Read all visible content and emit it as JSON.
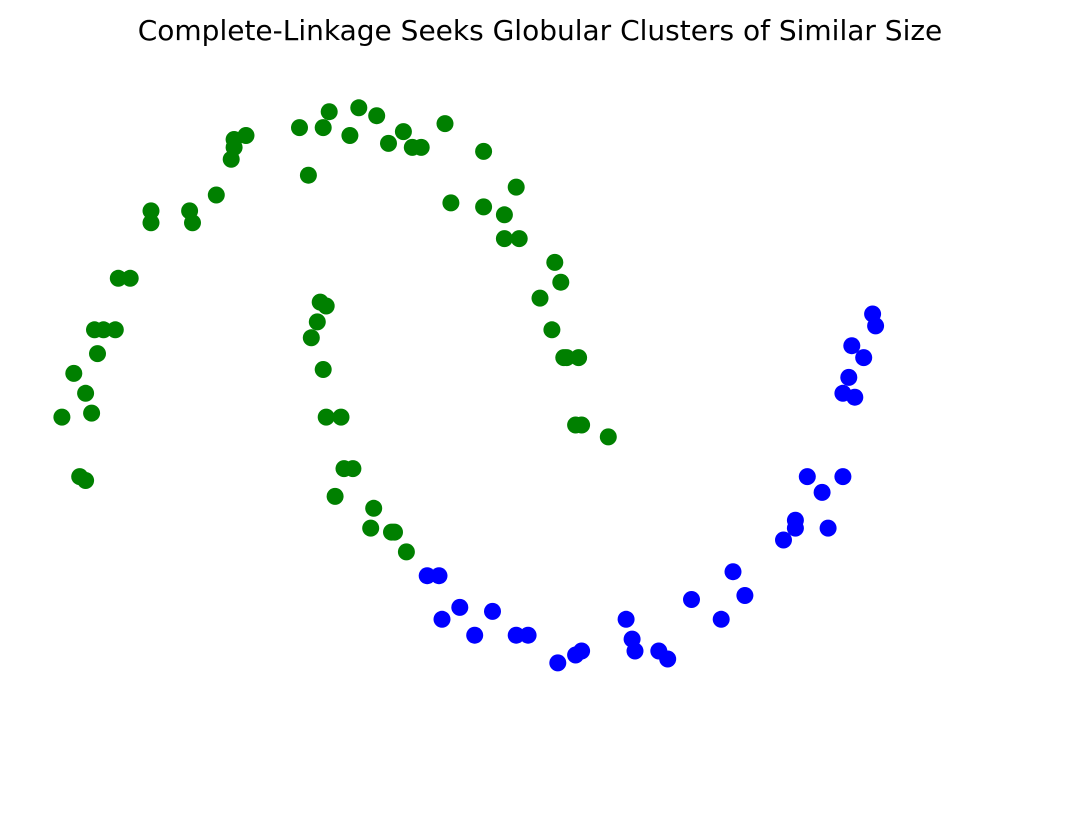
{
  "chart_data": {
    "type": "scatter",
    "title": "Complete-Linkage Seeks Globular Clusters of Similar Size",
    "xlabel": "",
    "ylabel": "",
    "axes_visible": false,
    "grid": false,
    "xlim": [
      -1.15,
      2.15
    ],
    "ylim": [
      -0.62,
      1.12
    ],
    "series": [
      {
        "color": "#008000",
        "points": [
          [
            -1.11,
            0.27
          ],
          [
            -1.07,
            0.38
          ],
          [
            -1.03,
            0.33
          ],
          [
            -1.01,
            0.28
          ],
          [
            -1.05,
            0.12
          ],
          [
            -1.03,
            0.11
          ],
          [
            -0.99,
            0.43
          ],
          [
            -1.0,
            0.49
          ],
          [
            -0.97,
            0.49
          ],
          [
            -0.93,
            0.49
          ],
          [
            -0.92,
            0.62
          ],
          [
            -0.88,
            0.62
          ],
          [
            -0.81,
            0.76
          ],
          [
            -0.81,
            0.79
          ],
          [
            -0.68,
            0.79
          ],
          [
            -0.67,
            0.76
          ],
          [
            -0.59,
            0.83
          ],
          [
            -0.54,
            0.92
          ],
          [
            -0.53,
            0.95
          ],
          [
            -0.53,
            0.97
          ],
          [
            -0.49,
            0.98
          ],
          [
            -0.31,
            1.0
          ],
          [
            -0.28,
            0.88
          ],
          [
            -0.23,
            1.0
          ],
          [
            -0.21,
            1.04
          ],
          [
            -0.14,
            0.98
          ],
          [
            -0.11,
            1.05
          ],
          [
            -0.05,
            1.03
          ],
          [
            -0.01,
            0.96
          ],
          [
            0.04,
            0.99
          ],
          [
            0.07,
            0.95
          ],
          [
            0.1,
            0.95
          ],
          [
            0.18,
            1.01
          ],
          [
            0.2,
            0.81
          ],
          [
            0.31,
            0.94
          ],
          [
            0.31,
            0.8
          ],
          [
            0.38,
            0.78
          ],
          [
            0.42,
            0.85
          ],
          [
            0.38,
            0.72
          ],
          [
            0.43,
            0.72
          ],
          [
            0.55,
            0.66
          ],
          [
            0.57,
            0.61
          ],
          [
            0.5,
            0.57
          ],
          [
            0.54,
            0.49
          ],
          [
            0.58,
            0.42
          ],
          [
            0.59,
            0.42
          ],
          [
            0.63,
            0.42
          ],
          [
            0.62,
            0.25
          ],
          [
            0.64,
            0.25
          ],
          [
            0.73,
            0.22
          ],
          [
            -0.24,
            0.56
          ],
          [
            -0.22,
            0.55
          ],
          [
            -0.25,
            0.51
          ],
          [
            -0.27,
            0.47
          ],
          [
            -0.23,
            0.39
          ],
          [
            -0.22,
            0.27
          ],
          [
            -0.17,
            0.27
          ],
          [
            -0.16,
            0.14
          ],
          [
            -0.13,
            0.14
          ],
          [
            -0.19,
            0.07
          ],
          [
            -0.06,
            0.04
          ],
          [
            -0.07,
            -0.01
          ],
          [
            0.0,
            -0.02
          ],
          [
            0.01,
            -0.02
          ],
          [
            0.05,
            -0.07
          ]
        ]
      },
      {
        "color": "#0000ff",
        "points": [
          [
            0.12,
            -0.13
          ],
          [
            0.16,
            -0.13
          ],
          [
            0.17,
            -0.24
          ],
          [
            0.23,
            -0.21
          ],
          [
            0.28,
            -0.28
          ],
          [
            0.34,
            -0.22
          ],
          [
            0.42,
            -0.28
          ],
          [
            0.46,
            -0.28
          ],
          [
            0.56,
            -0.35
          ],
          [
            0.62,
            -0.33
          ],
          [
            0.64,
            -0.32
          ],
          [
            0.79,
            -0.24
          ],
          [
            0.81,
            -0.29
          ],
          [
            0.82,
            -0.32
          ],
          [
            0.9,
            -0.32
          ],
          [
            0.93,
            -0.34
          ],
          [
            1.01,
            -0.19
          ],
          [
            1.11,
            -0.24
          ],
          [
            1.15,
            -0.12
          ],
          [
            1.19,
            -0.18
          ],
          [
            1.32,
            -0.04
          ],
          [
            1.36,
            0.01
          ],
          [
            1.36,
            -0.01
          ],
          [
            1.4,
            0.12
          ],
          [
            1.45,
            0.08
          ],
          [
            1.47,
            -0.01
          ],
          [
            1.52,
            0.12
          ],
          [
            1.52,
            0.33
          ],
          [
            1.54,
            0.37
          ],
          [
            1.56,
            0.32
          ],
          [
            1.55,
            0.45
          ],
          [
            1.59,
            0.42
          ],
          [
            1.62,
            0.53
          ],
          [
            1.63,
            0.5
          ]
        ]
      }
    ]
  }
}
